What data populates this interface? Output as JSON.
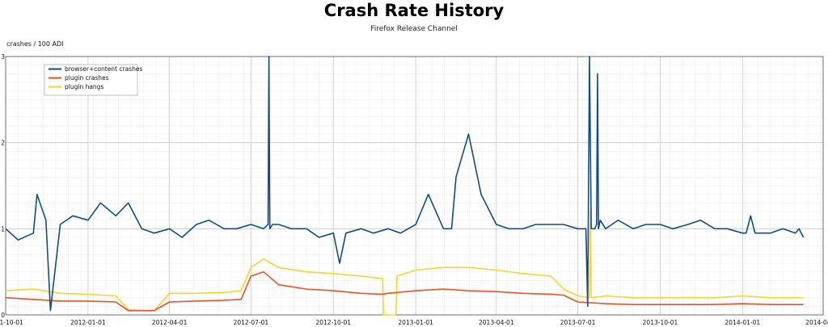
{
  "chart_data": {
    "type": "line",
    "title": "Crash Rate History",
    "subtitle": "Firefox Release Channel",
    "ylabel": "crashes / 100 ADI",
    "xlabel": "",
    "ylim": [
      0,
      3
    ],
    "yticks": [
      "0",
      "1",
      "2",
      "3"
    ],
    "xticks": [
      "2011-10-01",
      "2012-01-01",
      "2012-04-01",
      "2012-07-01",
      "2012-10-01",
      "2013-01-01",
      "2013-04-01",
      "2013-07-01",
      "2013-10-01",
      "2014-01-01",
      "2014-04-01"
    ],
    "x_range": [
      "2011-10-01",
      "2014-04-01"
    ],
    "grid": true,
    "legend_position": "top-left",
    "colors": {
      "browser": "#0d4d8c",
      "plugin_crashes": "#f0501e",
      "plugin_hangs": "#fdd22c"
    },
    "series": [
      {
        "name": "browser+content crashes",
        "color": "#0d4d8c",
        "x": [
          "2011-10-01",
          "2011-10-15",
          "2011-11-01",
          "2011-11-05",
          "2011-11-15",
          "2011-11-20",
          "2011-12-01",
          "2011-12-15",
          "2012-01-01",
          "2012-01-15",
          "2012-02-01",
          "2012-02-15",
          "2012-03-01",
          "2012-03-15",
          "2012-04-01",
          "2012-04-15",
          "2012-05-01",
          "2012-05-15",
          "2012-06-01",
          "2012-06-15",
          "2012-07-01",
          "2012-07-15",
          "2012-07-20",
          "2012-07-21",
          "2012-07-22",
          "2012-07-25",
          "2012-08-01",
          "2012-08-15",
          "2012-09-01",
          "2012-09-15",
          "2012-10-01",
          "2012-10-08",
          "2012-10-15",
          "2012-11-01",
          "2012-11-15",
          "2012-12-01",
          "2012-12-15",
          "2013-01-01",
          "2013-01-15",
          "2013-02-01",
          "2013-02-10",
          "2013-02-15",
          "2013-03-01",
          "2013-03-15",
          "2013-04-01",
          "2013-04-15",
          "2013-05-01",
          "2013-05-15",
          "2013-06-01",
          "2013-06-15",
          "2013-07-01",
          "2013-07-10",
          "2013-07-12",
          "2013-07-14",
          "2013-07-16",
          "2013-07-20",
          "2013-07-22",
          "2013-07-23",
          "2013-07-24",
          "2013-07-26",
          "2013-08-01",
          "2013-08-15",
          "2013-09-01",
          "2013-09-15",
          "2013-10-01",
          "2013-10-15",
          "2013-11-01",
          "2013-11-15",
          "2013-12-01",
          "2013-12-15",
          "2014-01-01",
          "2014-01-05",
          "2014-01-10",
          "2014-01-15",
          "2014-02-01",
          "2014-02-15",
          "2014-03-01",
          "2014-03-05",
          "2014-03-10"
        ],
        "values": [
          1.0,
          0.87,
          0.95,
          1.4,
          1.1,
          0.05,
          1.05,
          1.15,
          1.1,
          1.3,
          1.15,
          1.3,
          1.0,
          0.95,
          1.0,
          0.9,
          1.05,
          1.1,
          1.0,
          1.0,
          1.05,
          1.0,
          1.05,
          3.0,
          1.0,
          1.05,
          1.05,
          1.0,
          1.0,
          0.9,
          0.95,
          0.6,
          0.95,
          1.0,
          0.95,
          1.0,
          0.95,
          1.05,
          1.4,
          1.0,
          1.0,
          1.6,
          2.1,
          1.4,
          1.05,
          1.0,
          1.0,
          1.05,
          1.05,
          1.05,
          1.0,
          1.0,
          0.1,
          3.0,
          1.0,
          1.0,
          1.05,
          2.8,
          1.0,
          1.1,
          1.0,
          1.1,
          1.0,
          1.05,
          1.05,
          1.0,
          1.05,
          1.1,
          1.0,
          1.0,
          0.95,
          0.95,
          1.15,
          0.95,
          0.95,
          1.0,
          0.95,
          1.0,
          0.9
        ]
      },
      {
        "name": "plugin crashes",
        "color": "#f0501e",
        "x": [
          "2011-10-01",
          "2011-11-01",
          "2011-12-01",
          "2012-01-01",
          "2012-02-01",
          "2012-02-15",
          "2012-03-01",
          "2012-03-15",
          "2012-04-01",
          "2012-05-01",
          "2012-06-01",
          "2012-06-20",
          "2012-07-01",
          "2012-07-15",
          "2012-08-01",
          "2012-09-01",
          "2012-10-01",
          "2012-11-01",
          "2012-11-25",
          "2012-12-01",
          "2013-01-01",
          "2013-02-01",
          "2013-03-01",
          "2013-04-01",
          "2013-05-01",
          "2013-06-01",
          "2013-06-15",
          "2013-07-01",
          "2013-08-01",
          "2013-09-01",
          "2013-10-01",
          "2013-11-01",
          "2013-12-01",
          "2014-01-01",
          "2014-02-01",
          "2014-03-01",
          "2014-03-10"
        ],
        "values": [
          0.2,
          0.18,
          0.16,
          0.16,
          0.15,
          0.05,
          0.05,
          0.05,
          0.15,
          0.16,
          0.17,
          0.18,
          0.45,
          0.5,
          0.35,
          0.3,
          0.28,
          0.25,
          0.24,
          0.25,
          0.28,
          0.3,
          0.28,
          0.27,
          0.25,
          0.24,
          0.23,
          0.15,
          0.13,
          0.12,
          0.12,
          0.12,
          0.12,
          0.13,
          0.12,
          0.12,
          0.12
        ]
      },
      {
        "name": "plugin hangs",
        "color": "#fdd22c",
        "x": [
          "2011-10-01",
          "2011-11-01",
          "2011-12-01",
          "2012-01-01",
          "2012-02-01",
          "2012-02-15",
          "2012-03-01",
          "2012-03-15",
          "2012-04-01",
          "2012-05-01",
          "2012-06-01",
          "2012-06-20",
          "2012-07-01",
          "2012-07-15",
          "2012-08-01",
          "2012-09-01",
          "2012-10-01",
          "2012-11-01",
          "2012-11-25",
          "2012-11-26",
          "2012-12-10",
          "2012-12-11",
          "2013-01-01",
          "2013-02-01",
          "2013-03-01",
          "2013-04-01",
          "2013-05-01",
          "2013-06-01",
          "2013-06-15",
          "2013-07-01",
          "2013-07-14",
          "2013-07-15",
          "2013-07-16",
          "2013-08-01",
          "2013-09-01",
          "2013-10-01",
          "2013-11-01",
          "2013-12-01",
          "2014-01-01",
          "2014-02-01",
          "2014-03-01",
          "2014-03-10"
        ],
        "values": [
          0.28,
          0.3,
          0.25,
          0.24,
          0.22,
          0.06,
          0.05,
          0.05,
          0.25,
          0.25,
          0.26,
          0.28,
          0.55,
          0.65,
          0.55,
          0.5,
          0.48,
          0.45,
          0.42,
          0.0,
          0.0,
          0.45,
          0.52,
          0.55,
          0.55,
          0.52,
          0.48,
          0.45,
          0.3,
          0.22,
          0.2,
          1.2,
          0.2,
          0.22,
          0.2,
          0.2,
          0.2,
          0.2,
          0.22,
          0.2,
          0.2,
          0.2
        ]
      }
    ]
  }
}
